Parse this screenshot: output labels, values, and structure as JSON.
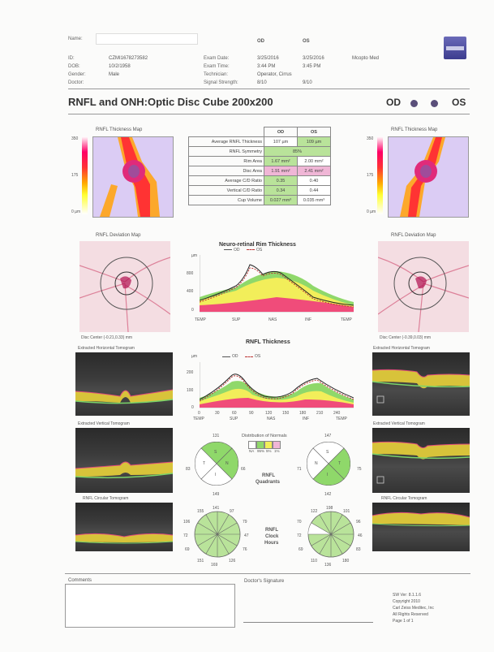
{
  "header": {
    "name_label": "Name:",
    "id_label": "ID:",
    "id_value": "CZMI1678273582",
    "dob_label": "DOB:",
    "dob_value": "10/2/1958",
    "gender_label": "Gender:",
    "gender_value": "Male",
    "doctor_label": "Doctor:",
    "col_od": "OD",
    "col_os": "OS",
    "exam_date_label": "Exam Date:",
    "exam_date_od": "3/25/2016",
    "exam_date_os": "3/25/2016",
    "exam_time_label": "Exam Time:",
    "exam_time_od": "3:44 PM",
    "exam_time_os": "3:45 PM",
    "technician_label": "Technician:",
    "technician_value": "Operator, Cirrus",
    "signal_label": "Signal Strength:",
    "signal_od": "8/10",
    "signal_os": "9/10",
    "clinic": "Mcopto Med"
  },
  "title": "RNFL and ONH:Optic Disc Cube 200x200",
  "eye_od": "OD",
  "eye_os": "OS",
  "thickness_map": {
    "title_od": "RNFL Thickness Map",
    "title_os": "RNFL Thickness Map",
    "scale_top": "350",
    "scale_mid": "175",
    "scale_bottom": "0 µm"
  },
  "metrics": {
    "header_od": "OD",
    "header_os": "OS",
    "rows": [
      {
        "label": "Average RNFL Thickness",
        "od": "107 µm",
        "os": "109 µm",
        "od_color": "#ffffff",
        "os_color": "#b9e39a"
      },
      {
        "label": "RNFL Symmetry",
        "both": "85%"
      },
      {
        "label": "Rim Area",
        "od": "1.67 mm²",
        "os": "2.00 mm²",
        "od_color": "#b9e39a",
        "os_color": "#ffffff"
      },
      {
        "label": "Disc Area",
        "od": "1.91 mm²",
        "os": "2.41 mm²",
        "od_color": "#f0b6d6",
        "os_color": "#f0b6d6"
      },
      {
        "label": "Average C/D Ratio",
        "od": "0.35",
        "os": "0.40",
        "od_color": "#b9e39a",
        "os_color": "#ffffff"
      },
      {
        "label": "Vertical C/D Ratio",
        "od": "0.34",
        "os": "0.44",
        "od_color": "#b9e39a",
        "os_color": "#ffffff"
      },
      {
        "label": "Cup Volume",
        "od": "0.027 mm³",
        "os": "0.035 mm³",
        "od_color": "#b9e39a",
        "os_color": "#ffffff"
      }
    ]
  },
  "deviation": {
    "title_od": "RNFL Deviation Map",
    "title_os": "RNFL Deviation Map",
    "disc_center_od": "Disc Center (-0.21,0.33) mm",
    "disc_center_os": "Disc Center (-0.39,0.03) mm"
  },
  "rim_chart": {
    "title": "Neuro-retinal Rim Thickness",
    "legend_od": "OD",
    "legend_os": "OS",
    "unit": "µm",
    "y_ticks": [
      "800",
      "400",
      "0"
    ],
    "x_ticks": [
      "TEMP",
      "SUP",
      "NAS",
      "INF",
      "TEMP"
    ]
  },
  "rnfl_chart": {
    "title": "RNFL Thickness",
    "legend_od": "OD",
    "legend_os": "OS",
    "unit": "µm",
    "y_ticks": [
      "200",
      "100",
      "0"
    ],
    "x_ticks": [
      "0",
      "30",
      "60",
      "90",
      "120",
      "150",
      "180",
      "210",
      "240"
    ],
    "x_labels": [
      "TEMP",
      "SUP",
      "NAS",
      "INF",
      "TEMP"
    ]
  },
  "tomograms": {
    "h_od": "Extracted Horizontal Tomogram",
    "h_os": "Extracted Horizontal Tomogram",
    "v_od": "Extracted Vertical Tomogram",
    "v_os": "Extracted Vertical Tomogram",
    "c_od": "RNFL Circular Tomogram",
    "c_os": "RNFL Circular Tomogram"
  },
  "normals": {
    "title": "Distribution of Normals",
    "labels": [
      "NA",
      "95%",
      "5%",
      "1%"
    ],
    "colors": [
      "#ffffff",
      "#ffffff",
      "#f2ee5a",
      "#f0b6d6"
    ]
  },
  "quadrants": {
    "title_line1": "RNFL",
    "title_line2": "Quadrants",
    "od": {
      "top": "131",
      "left": "83",
      "right": "66",
      "bottom": "149",
      "inner_t": "S",
      "inner_n": "N",
      "inner_i": "I",
      "inner_tmp": "T"
    },
    "os": {
      "top": "147",
      "left": "71",
      "right": "75",
      "bottom": "142",
      "inner_t": "S",
      "inner_n": "N",
      "inner_i": "I",
      "inner_tmp": "T"
    }
  },
  "clock": {
    "title_line1": "RNFL",
    "title_line2": "Clock",
    "title_line3": "Hours",
    "od": {
      "top_l": "155",
      "top": "141",
      "top_r": "97",
      "r1": "79",
      "r2": "47",
      "r3": "76",
      "bot_r": "126",
      "bot": "169",
      "bot_l": "151",
      "l3": "69",
      "l2": "72",
      "l1": "106"
    },
    "os": {
      "top_l": "122",
      "top": "198",
      "top_r": "101",
      "r1": "96",
      "r2": "46",
      "r3": "83",
      "bot_r": "180",
      "bot": "136",
      "bot_l": "110",
      "l3": "69",
      "l2": "72",
      "l1": "70"
    }
  },
  "footer": {
    "comments": "Comments",
    "signature": "Doctor's Signature",
    "sw_version": "SW Ver: 8.1.1.6",
    "copyright": "Copyright 2010",
    "company": "Carl Zeiss Meditec, Inc",
    "rights": "All Rights Reserved",
    "page": "Page 1 of 1"
  }
}
